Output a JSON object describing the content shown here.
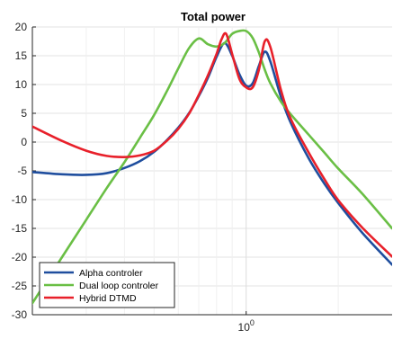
{
  "chart_data": {
    "type": "line",
    "title": "Total power",
    "xlabel": "",
    "ylabel": "",
    "xscale": "log",
    "xlim": [
      0.2,
      3.0
    ],
    "ylim": [
      -30,
      20
    ],
    "grid": true,
    "legend_position": "bottom-left",
    "x_tick_labels": [
      "10^0"
    ],
    "x_tick_values": [
      1
    ],
    "y_ticks": [
      20,
      15,
      10,
      5,
      0,
      -5,
      -10,
      -15,
      -20,
      -25,
      -30
    ],
    "series": [
      {
        "name": "Alpha controler",
        "color": "#1f4e9e",
        "x": [
          0.2,
          0.25,
          0.3,
          0.35,
          0.4,
          0.45,
          0.5,
          0.55,
          0.6,
          0.65,
          0.7,
          0.75,
          0.8,
          0.85,
          0.9,
          0.95,
          1.0,
          1.05,
          1.1,
          1.15,
          1.2,
          1.3,
          1.4,
          1.6,
          1.8,
          2.0,
          2.4,
          3.0
        ],
        "y": [
          -5.2,
          -5.6,
          -5.7,
          -5.4,
          -4.5,
          -3.3,
          -1.7,
          0.3,
          2.5,
          5.0,
          8.0,
          11.2,
          14.8,
          17.2,
          15.0,
          11.8,
          9.8,
          10.2,
          13.2,
          15.7,
          14.0,
          7.8,
          3.3,
          -2.8,
          -7.2,
          -10.6,
          -15.8,
          -21.3
        ]
      },
      {
        "name": "Dual loop controler",
        "color": "#6abf45",
        "x": [
          0.2,
          0.25,
          0.3,
          0.35,
          0.4,
          0.45,
          0.5,
          0.55,
          0.6,
          0.65,
          0.7,
          0.75,
          0.8,
          0.85,
          0.9,
          0.95,
          1.0,
          1.05,
          1.1,
          1.15,
          1.2,
          1.3,
          1.4,
          1.6,
          1.8,
          2.0,
          2.4,
          3.0
        ],
        "y": [
          -28.0,
          -20.0,
          -13.5,
          -8.0,
          -3.5,
          0.8,
          4.7,
          8.8,
          12.8,
          16.3,
          18.0,
          17.0,
          16.6,
          17.2,
          18.8,
          19.3,
          19.3,
          18.1,
          15.6,
          12.6,
          10.2,
          7.0,
          4.8,
          1.3,
          -1.8,
          -4.6,
          -9.0,
          -15.0
        ]
      },
      {
        "name": "Hybrid DTMD",
        "color": "#e8202a",
        "x": [
          0.2,
          0.25,
          0.3,
          0.35,
          0.4,
          0.45,
          0.5,
          0.55,
          0.6,
          0.65,
          0.7,
          0.75,
          0.8,
          0.83,
          0.86,
          0.9,
          0.95,
          1.0,
          1.05,
          1.1,
          1.15,
          1.2,
          1.3,
          1.4,
          1.6,
          1.8,
          2.0,
          2.4,
          3.0
        ],
        "y": [
          2.7,
          0.2,
          -1.5,
          -2.4,
          -2.6,
          -2.3,
          -1.5,
          0.2,
          2.3,
          4.9,
          8.2,
          11.6,
          15.3,
          17.8,
          18.8,
          15.3,
          11.0,
          9.5,
          9.5,
          12.5,
          17.5,
          16.5,
          9.0,
          4.0,
          -1.8,
          -6.4,
          -10.1,
          -14.9,
          -19.9
        ]
      }
    ]
  }
}
